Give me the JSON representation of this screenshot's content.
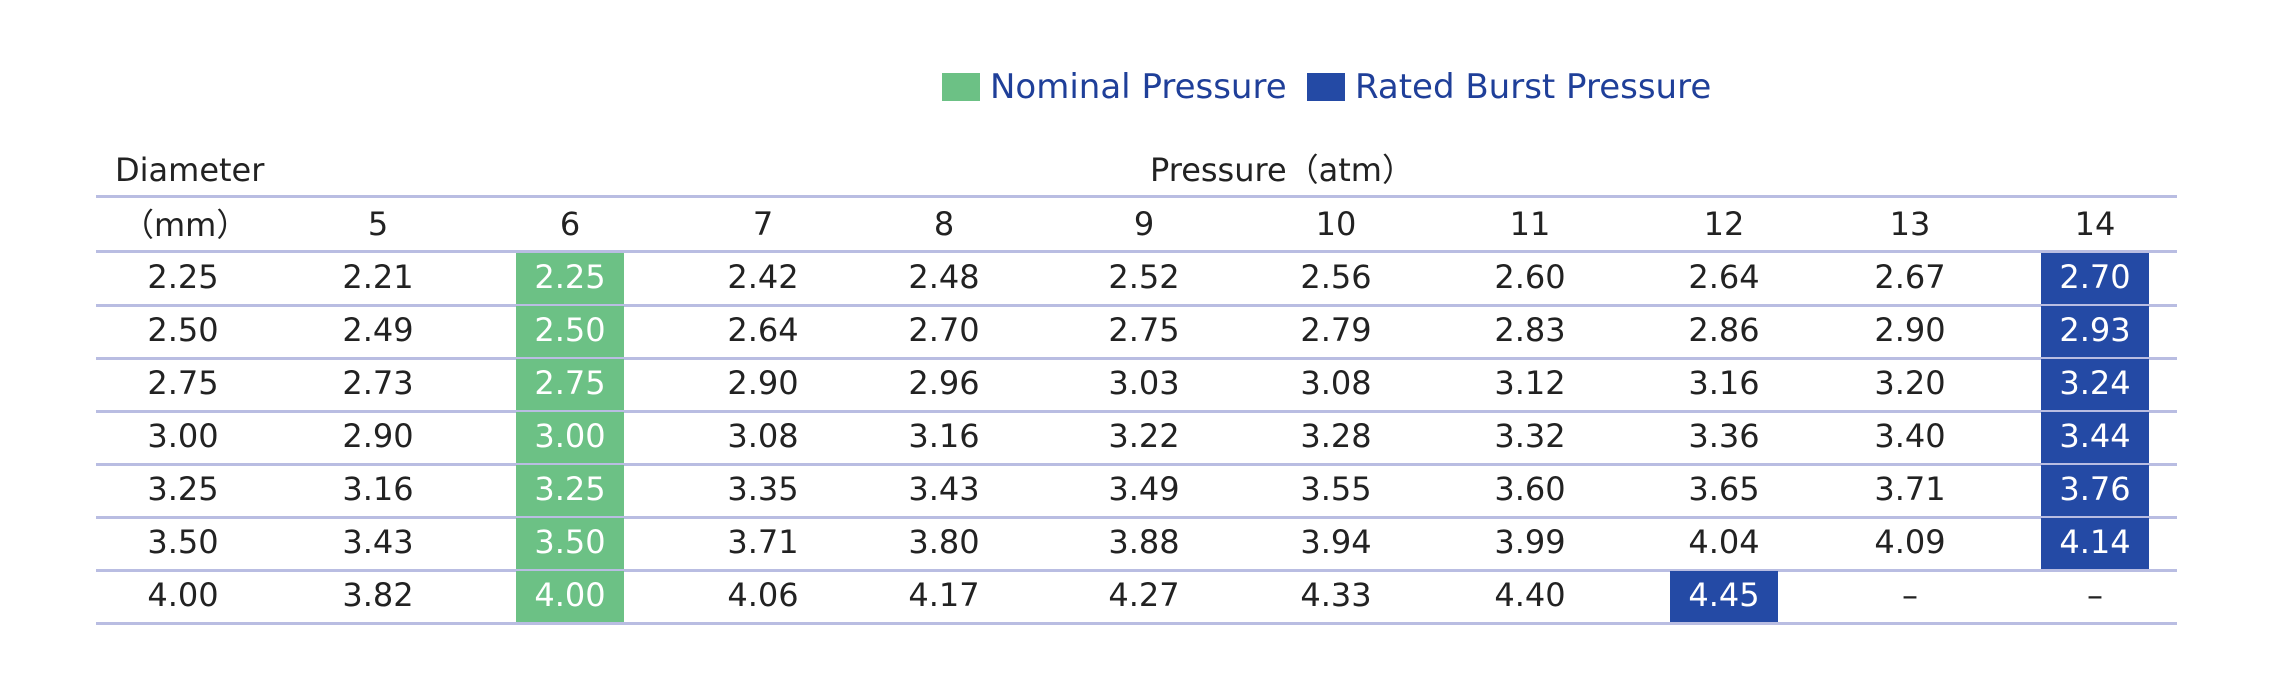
{
  "colors": {
    "nominal": "#6cc185",
    "rated_burst": "#244aa5",
    "rule": "#b9bde2",
    "legend_text": "#1f3f99"
  },
  "legend": {
    "nominal_label": "Nominal Pressure",
    "rated_burst_label": "Rated Burst Pressure"
  },
  "header": {
    "diameter_label": "Diameter",
    "diameter_unit": "（mm）",
    "pressure_label": "Pressure（atm）"
  },
  "chart_data": {
    "type": "table",
    "columns": [
      "5",
      "6",
      "7",
      "8",
      "9",
      "10",
      "11",
      "12",
      "13",
      "14"
    ],
    "rows": [
      {
        "diameter": "2.25",
        "values": [
          "2.21",
          "2.25",
          "2.42",
          "2.48",
          "2.52",
          "2.56",
          "2.60",
          "2.64",
          "2.67",
          "2.70"
        ],
        "nominal_col": 1,
        "rated_burst_col": 9
      },
      {
        "diameter": "2.50",
        "values": [
          "2.49",
          "2.50",
          "2.64",
          "2.70",
          "2.75",
          "2.79",
          "2.83",
          "2.86",
          "2.90",
          "2.93"
        ],
        "nominal_col": 1,
        "rated_burst_col": 9
      },
      {
        "diameter": "2.75",
        "values": [
          "2.73",
          "2.75",
          "2.90",
          "2.96",
          "3.03",
          "3.08",
          "3.12",
          "3.16",
          "3.20",
          "3.24"
        ],
        "nominal_col": 1,
        "rated_burst_col": 9
      },
      {
        "diameter": "3.00",
        "values": [
          "2.90",
          "3.00",
          "3.08",
          "3.16",
          "3.22",
          "3.28",
          "3.32",
          "3.36",
          "3.40",
          "3.44"
        ],
        "nominal_col": 1,
        "rated_burst_col": 9
      },
      {
        "diameter": "3.25",
        "values": [
          "3.16",
          "3.25",
          "3.35",
          "3.43",
          "3.49",
          "3.55",
          "3.60",
          "3.65",
          "3.71",
          "3.76"
        ],
        "nominal_col": 1,
        "rated_burst_col": 9
      },
      {
        "diameter": "3.50",
        "values": [
          "3.43",
          "3.50",
          "3.71",
          "3.80",
          "3.88",
          "3.94",
          "3.99",
          "4.04",
          "4.09",
          "4.14"
        ],
        "nominal_col": 1,
        "rated_burst_col": 9
      },
      {
        "diameter": "4.00",
        "values": [
          "3.82",
          "4.00",
          "4.06",
          "4.17",
          "4.27",
          "4.33",
          "4.40",
          "4.45",
          "–",
          "–"
        ],
        "nominal_col": 1,
        "rated_burst_col": 7
      }
    ]
  }
}
